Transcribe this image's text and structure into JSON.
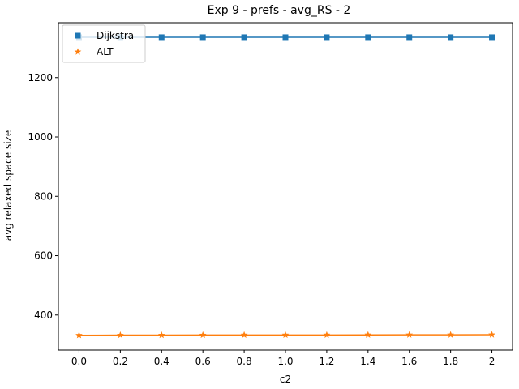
{
  "chart_data": {
    "type": "line",
    "title": "Exp 9 - prefs - avg_RS - 2",
    "xlabel": "c2",
    "ylabel": "avg relaxed space size",
    "x": [
      0.0,
      0.2,
      0.4,
      0.6,
      0.8,
      1.0,
      1.2,
      1.4,
      1.6,
      1.8,
      2.0
    ],
    "xticks": [
      0.0,
      0.2,
      0.4,
      0.6,
      0.8,
      1.0,
      1.2,
      1.4,
      1.6,
      1.8,
      2.0
    ],
    "xtick_labels": [
      "0.0",
      "0.2",
      "0.4",
      "0.6",
      "0.8",
      "1.0",
      "1.2",
      "1.4",
      "1.6",
      "1.8",
      "2"
    ],
    "xlim": [
      -0.1,
      2.1
    ],
    "yticks": [
      400,
      600,
      800,
      1000,
      1200
    ],
    "ylim": [
      282,
      1385
    ],
    "grid": false,
    "legend_position": "upper-left",
    "series": [
      {
        "name": "Dijkstra",
        "marker": "square",
        "color": "#1f77b4",
        "values": [
          1336,
          1336,
          1336,
          1336,
          1336,
          1336,
          1336,
          1336,
          1336,
          1336,
          1336
        ]
      },
      {
        "name": "ALT",
        "marker": "star",
        "color": "#ff7f0e",
        "values": [
          332,
          332.5,
          332.5,
          332.8,
          333,
          333,
          333,
          333.3,
          333.5,
          333.5,
          333.8
        ]
      }
    ]
  }
}
